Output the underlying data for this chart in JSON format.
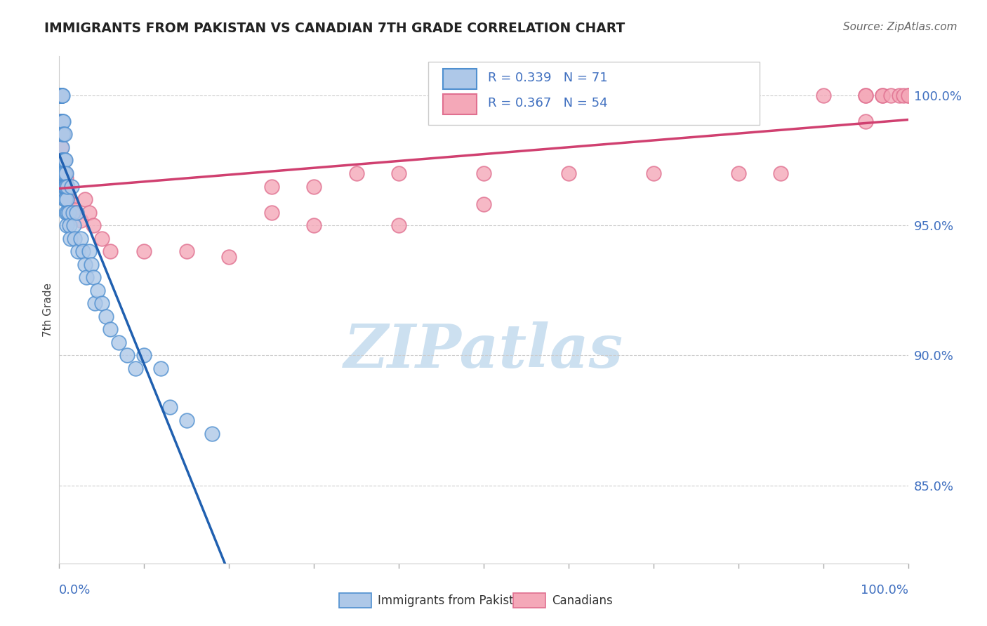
{
  "title": "IMMIGRANTS FROM PAKISTAN VS CANADIAN 7TH GRADE CORRELATION CHART",
  "source": "Source: ZipAtlas.com",
  "ylabel": "7th Grade",
  "legend_label_blue": "Immigrants from Pakistan",
  "legend_label_pink": "Canadians",
  "R_blue": 0.339,
  "N_blue": 71,
  "R_pink": 0.367,
  "N_pink": 54,
  "blue_color": "#aec8e8",
  "blue_edge_color": "#5090d0",
  "blue_line_color": "#2060b0",
  "pink_color": "#f4a8b8",
  "pink_edge_color": "#e07090",
  "pink_line_color": "#d04070",
  "text_color": "#4070c0",
  "ylabel_ticks": [
    "100.0%",
    "95.0%",
    "90.0%",
    "85.0%"
  ],
  "ylabel_tick_values": [
    1.0,
    0.95,
    0.9,
    0.85
  ],
  "watermark_color": "#cce0f0",
  "blue_x": [
    0.001,
    0.001,
    0.001,
    0.002,
    0.002,
    0.002,
    0.002,
    0.002,
    0.003,
    0.003,
    0.003,
    0.003,
    0.003,
    0.003,
    0.003,
    0.003,
    0.003,
    0.004,
    0.004,
    0.004,
    0.004,
    0.004,
    0.005,
    0.005,
    0.005,
    0.005,
    0.005,
    0.006,
    0.006,
    0.006,
    0.006,
    0.006,
    0.007,
    0.007,
    0.007,
    0.008,
    0.008,
    0.008,
    0.009,
    0.009,
    0.01,
    0.01,
    0.011,
    0.012,
    0.013,
    0.015,
    0.016,
    0.017,
    0.018,
    0.02,
    0.022,
    0.025,
    0.028,
    0.03,
    0.032,
    0.035,
    0.038,
    0.04,
    0.042,
    0.045,
    0.05,
    0.055,
    0.06,
    0.07,
    0.08,
    0.09,
    0.1,
    0.12,
    0.13,
    0.15,
    0.18
  ],
  "blue_y": [
    1.0,
    1.0,
    1.0,
    1.0,
    1.0,
    1.0,
    0.99,
    0.99,
    1.0,
    1.0,
    1.0,
    0.99,
    0.99,
    0.985,
    0.98,
    0.975,
    0.97,
    1.0,
    0.99,
    0.985,
    0.975,
    0.97,
    0.99,
    0.985,
    0.975,
    0.97,
    0.965,
    0.985,
    0.975,
    0.97,
    0.965,
    0.96,
    0.975,
    0.965,
    0.96,
    0.97,
    0.965,
    0.955,
    0.96,
    0.95,
    0.965,
    0.955,
    0.955,
    0.95,
    0.945,
    0.965,
    0.955,
    0.95,
    0.945,
    0.955,
    0.94,
    0.945,
    0.94,
    0.935,
    0.93,
    0.94,
    0.935,
    0.93,
    0.92,
    0.925,
    0.92,
    0.915,
    0.91,
    0.905,
    0.9,
    0.895,
    0.9,
    0.895,
    0.88,
    0.875,
    0.87
  ],
  "pink_x": [
    0.001,
    0.001,
    0.002,
    0.002,
    0.002,
    0.003,
    0.003,
    0.003,
    0.004,
    0.005,
    0.005,
    0.006,
    0.006,
    0.007,
    0.008,
    0.009,
    0.01,
    0.012,
    0.015,
    0.018,
    0.02,
    0.025,
    0.03,
    0.035,
    0.04,
    0.05,
    0.06,
    0.1,
    0.15,
    0.2,
    0.25,
    0.3,
    0.35,
    0.4,
    0.5,
    0.6,
    0.7,
    0.8,
    0.85,
    0.9,
    0.95,
    1.0,
    0.95,
    0.95,
    0.97,
    0.97,
    0.98,
    0.99,
    0.995,
    1.0,
    0.25,
    0.3,
    0.4,
    0.5
  ],
  "pink_y": [
    1.0,
    0.99,
    1.0,
    0.99,
    0.98,
    1.0,
    0.985,
    0.975,
    0.975,
    0.985,
    0.975,
    0.975,
    0.965,
    0.97,
    0.968,
    0.965,
    0.963,
    0.96,
    0.958,
    0.956,
    0.955,
    0.952,
    0.96,
    0.955,
    0.95,
    0.945,
    0.94,
    0.94,
    0.94,
    0.938,
    0.965,
    0.965,
    0.97,
    0.97,
    0.97,
    0.97,
    0.97,
    0.97,
    0.97,
    1.0,
    1.0,
    1.0,
    1.0,
    0.99,
    1.0,
    1.0,
    1.0,
    1.0,
    1.0,
    1.0,
    0.955,
    0.95,
    0.95,
    0.958
  ]
}
